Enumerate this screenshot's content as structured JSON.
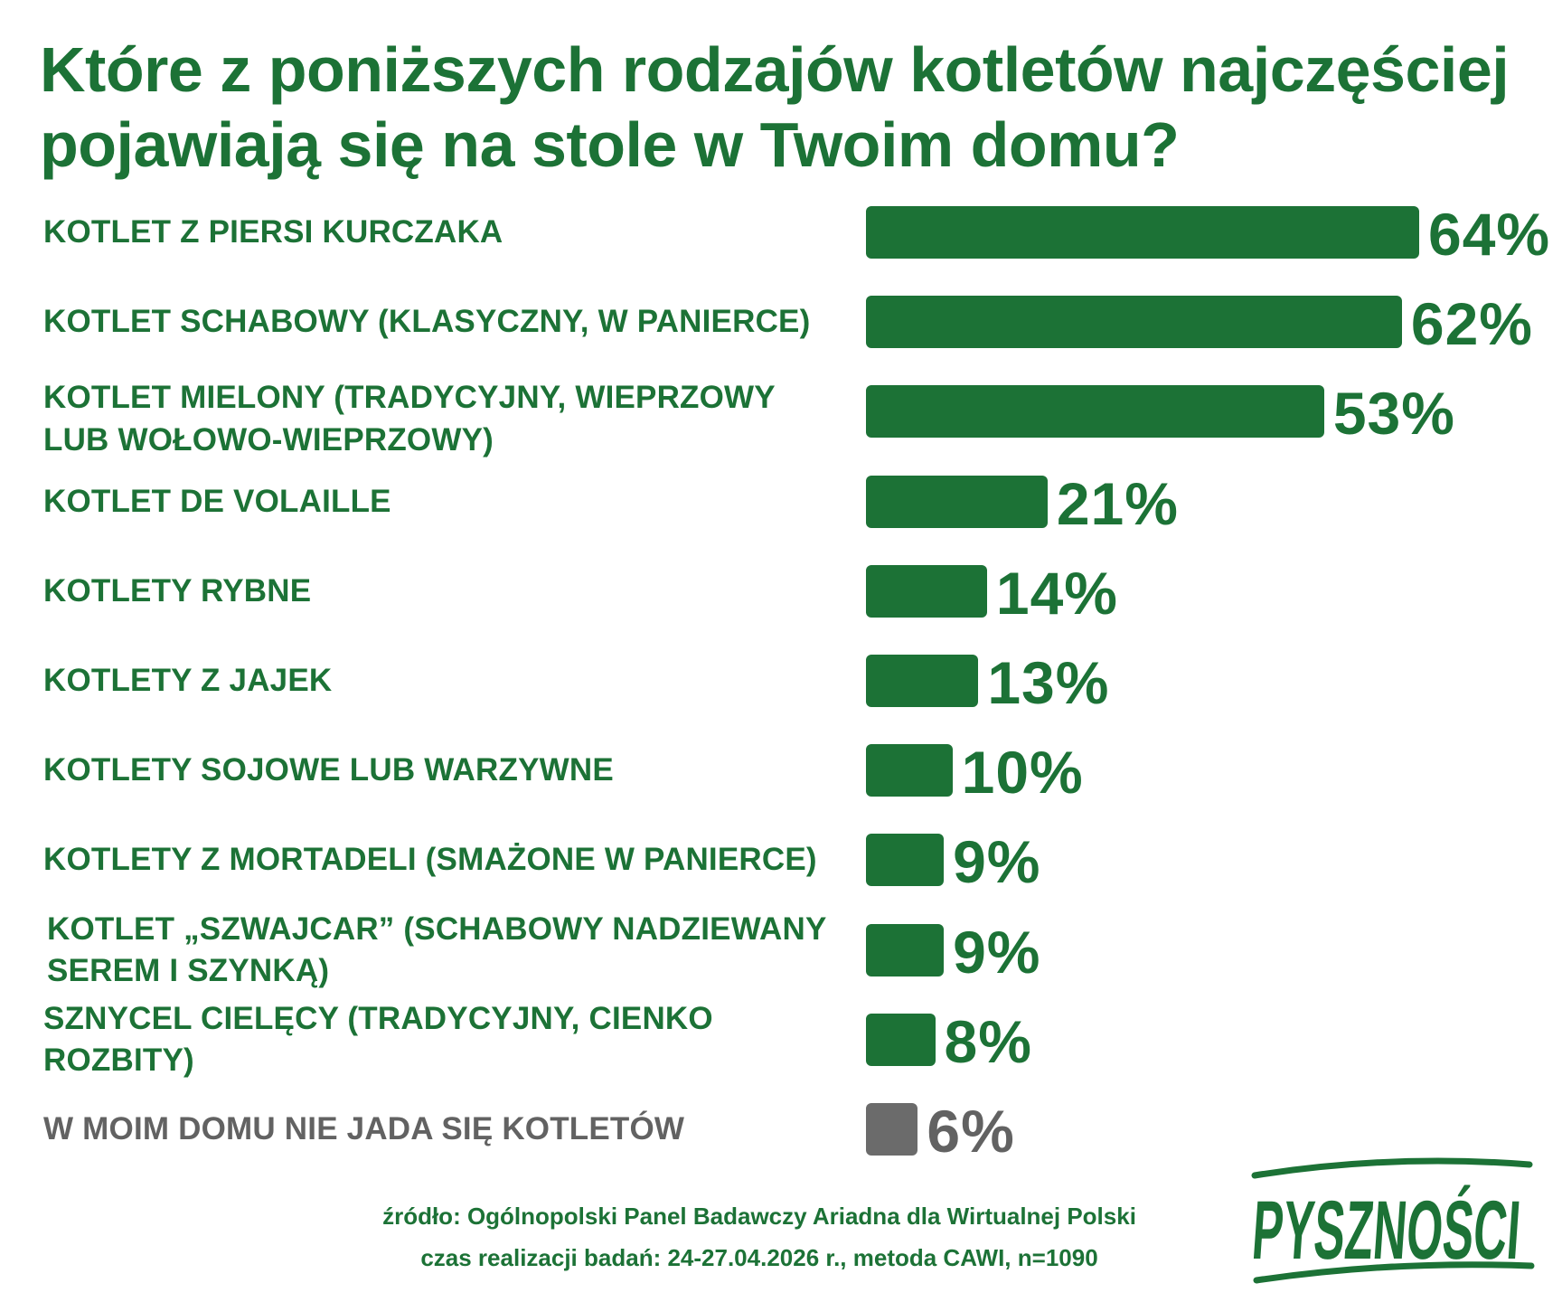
{
  "title": "Które z poniższych rodzajów kotletów najczęściej pojawiają się na stole w Twoim domu?",
  "chart_data": {
    "type": "bar",
    "orientation": "horizontal",
    "title": "Które z poniższych rodzajów kotletów najczęściej pojawiają się na stole w Twoim domu?",
    "categories": [
      "KOTLET Z PIERSI KURCZAKA",
      "KOTLET SCHABOWY (KLASYCZNY, W PANIERCE)",
      "KOTLET MIELONY (TRADYCYJNY, WIEPRZOWY LUB WOŁOWO-WIEPRZOWY)",
      "KOTLET DE VOLAILLE",
      "KOTLETY RYBNE",
      "KOTLETY Z JAJEK",
      "KOTLETY SOJOWE LUB WARZYWNE",
      "KOTLETY Z MORTADELI (SMAŻONE W PANIERCE)",
      "KOTLET „SZWAJCAR” (SCHABOWY NADZIEWANY SEREM I SZYNKĄ)",
      "SZNYCEL CIELĘCY (TRADYCYJNY, CIENKO ROZBITY)",
      "W MOIM DOMU NIE JADA SIĘ KOTLETÓW"
    ],
    "values": [
      64,
      62,
      53,
      21,
      14,
      13,
      10,
      9,
      9,
      8,
      6
    ],
    "value_labels": [
      "64%",
      "62%",
      "53%",
      "21%",
      "14%",
      "13%",
      "10%",
      "9%",
      "9%",
      "8%",
      "6%"
    ],
    "unit": "%",
    "xlim": [
      0,
      64
    ],
    "bar_color": "#1c7236",
    "none_bar_color": "#6b6b6b",
    "text_color": "#1c7236",
    "none_text_color": "#626262",
    "grid": false,
    "legend": "none"
  },
  "footer": {
    "source": "źródło: Ogólnopolski Panel Badawczy Ariadna dla Wirtualnej Polski",
    "method": "czas realizacji badań: 24-27.04.2026 r., metoda CAWI, n=1090"
  },
  "logo": {
    "text": "PYSZNOŚCI",
    "color": "#1c7236"
  }
}
